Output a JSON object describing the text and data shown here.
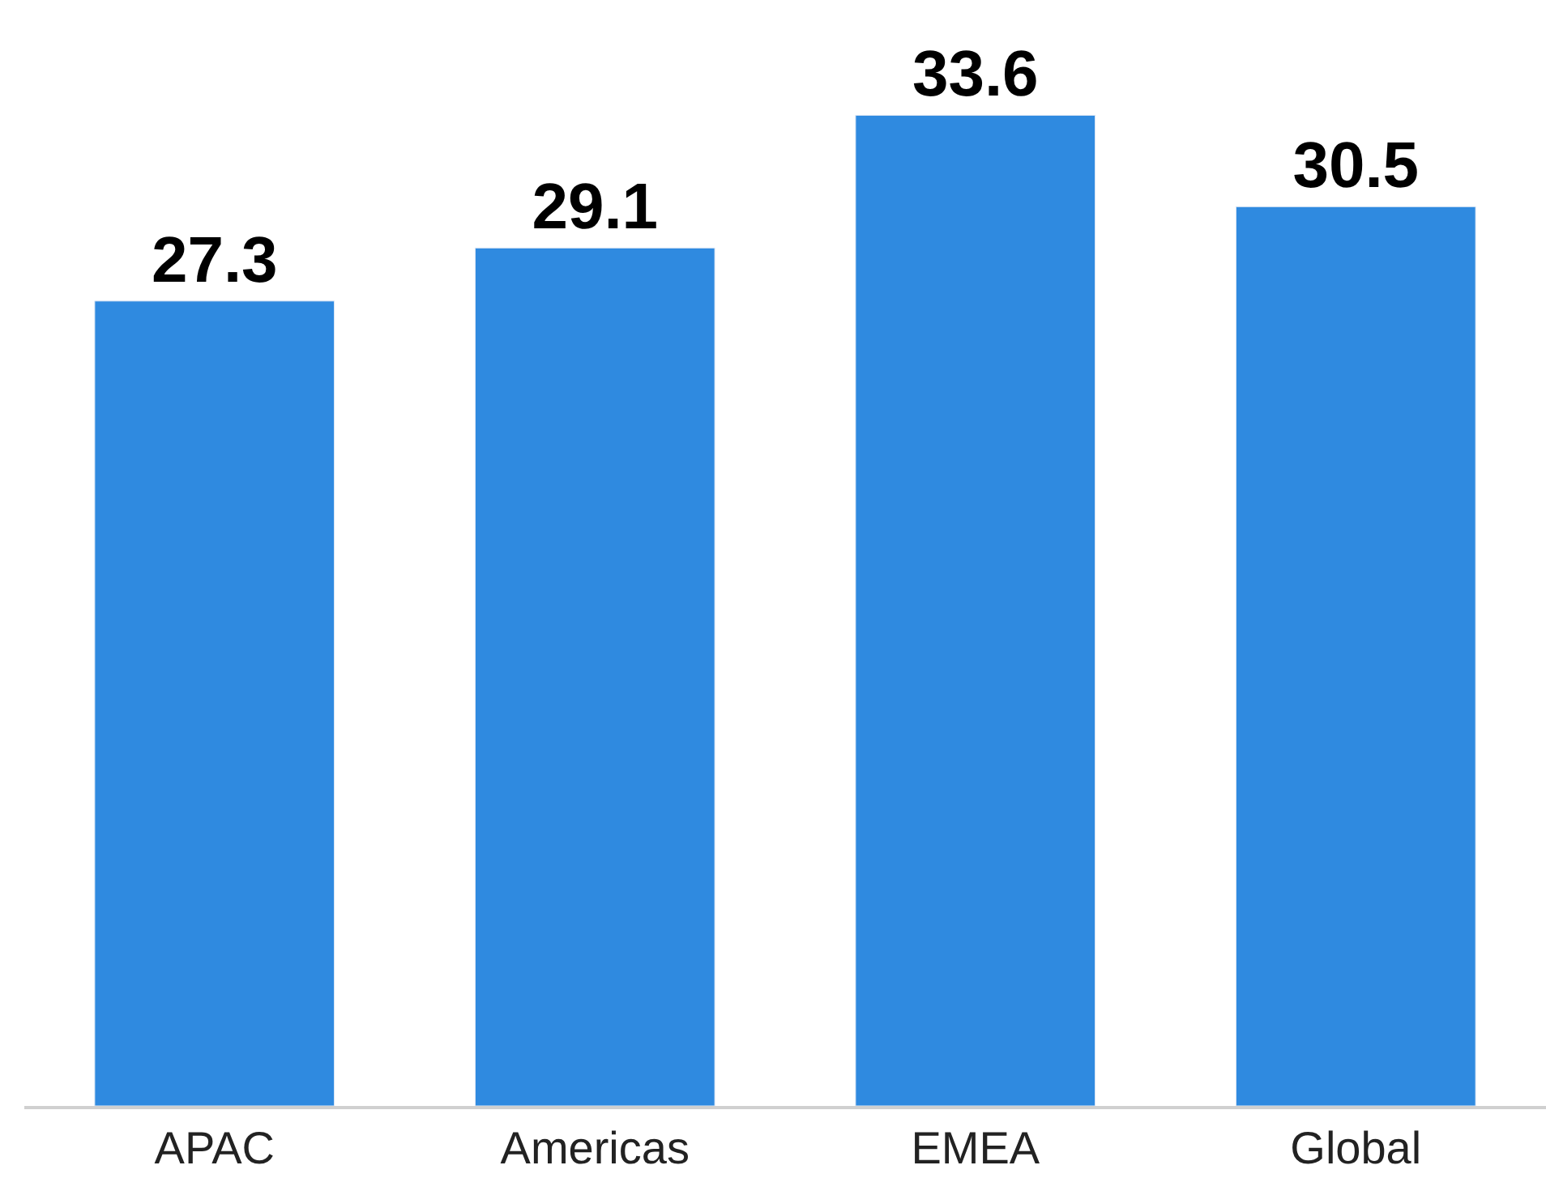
{
  "chart_data": {
    "type": "bar",
    "categories": [
      "APAC",
      "Americas",
      "EMEA",
      "Global"
    ],
    "values": [
      27.3,
      29.1,
      33.6,
      30.5
    ],
    "color": "#2f8ae0",
    "data_labels": true
  }
}
